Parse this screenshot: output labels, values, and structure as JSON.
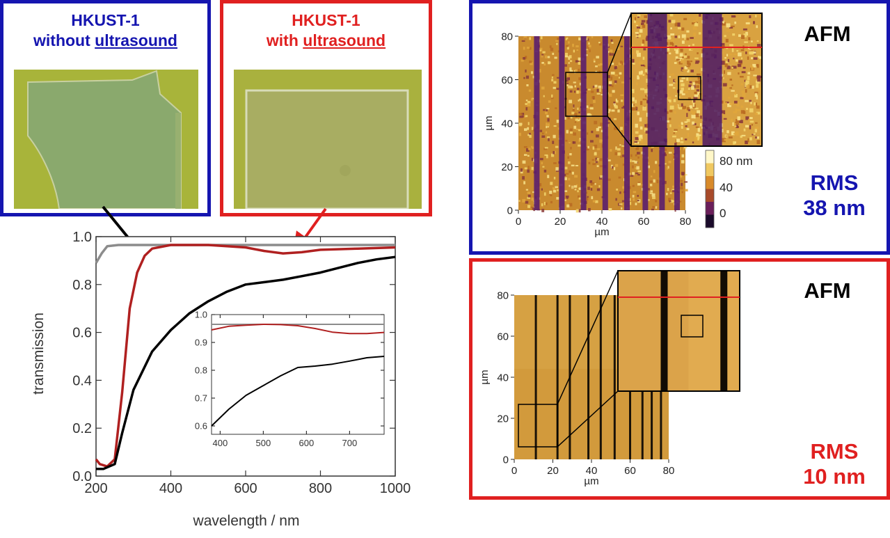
{
  "colors": {
    "blue": "#1515b0",
    "red": "#e02020",
    "black": "#000000",
    "gray": "#8c8c8c",
    "dark_red": "#b02020"
  },
  "sample_left": {
    "line1": "HKUST-1",
    "line2_prefix": "without ",
    "line2_underlined": "ultrasound"
  },
  "sample_right": {
    "line1": "HKUST-1",
    "line2_prefix": "with ",
    "line2_underlined": "ultrasound"
  },
  "afm_top": {
    "label": "AFM",
    "rms_label": "RMS",
    "rms_value": "38 nm",
    "x_ticks": [
      "0",
      "20",
      "40",
      "60",
      "80"
    ],
    "y_ticks": [
      "0",
      "20",
      "40",
      "60",
      "80"
    ],
    "xlabel": "µm",
    "ylabel": "µm",
    "colorbar_ticks": [
      "80",
      "40",
      "0"
    ],
    "colorbar_unit": "nm"
  },
  "afm_bottom": {
    "label": "AFM",
    "rms_label": "RMS",
    "rms_value": "10 nm",
    "x_ticks": [
      "0",
      "20",
      "40",
      "60",
      "80"
    ],
    "y_ticks": [
      "0",
      "20",
      "40",
      "60",
      "80"
    ],
    "xlabel": "µm",
    "ylabel": "µm"
  },
  "chart_data": [
    {
      "type": "line",
      "xlabel": "wavelength / nm",
      "ylabel": "transmission",
      "xlim": [
        200,
        1000
      ],
      "ylim": [
        0.0,
        1.0
      ],
      "x_ticks": [
        "200",
        "400",
        "600",
        "800",
        "1000"
      ],
      "y_ticks": [
        "0.0",
        "0.2",
        "0.4",
        "0.6",
        "0.8",
        "1.0"
      ],
      "series": [
        {
          "color": "#8c8c8c",
          "x": [
            200,
            215,
            230,
            260,
            300,
            400,
            500,
            600,
            700,
            800,
            900,
            1000
          ],
          "y": [
            0.89,
            0.93,
            0.96,
            0.965,
            0.965,
            0.965,
            0.965,
            0.965,
            0.965,
            0.965,
            0.965,
            0.965
          ]
        },
        {
          "color": "#b02020",
          "x": [
            200,
            210,
            230,
            250,
            270,
            290,
            310,
            330,
            350,
            400,
            450,
            500,
            550,
            600,
            650,
            700,
            750,
            800,
            900,
            1000
          ],
          "y": [
            0.07,
            0.05,
            0.04,
            0.07,
            0.35,
            0.7,
            0.85,
            0.92,
            0.95,
            0.965,
            0.965,
            0.965,
            0.96,
            0.955,
            0.94,
            0.93,
            0.935,
            0.945,
            0.95,
            0.955
          ]
        },
        {
          "color": "#000000",
          "x": [
            200,
            220,
            250,
            270,
            300,
            350,
            400,
            450,
            500,
            550,
            600,
            650,
            700,
            750,
            800,
            850,
            900,
            950,
            1000
          ],
          "y": [
            0.03,
            0.03,
            0.05,
            0.18,
            0.36,
            0.52,
            0.61,
            0.68,
            0.73,
            0.77,
            0.8,
            0.81,
            0.82,
            0.835,
            0.85,
            0.87,
            0.89,
            0.905,
            0.915
          ]
        }
      ]
    },
    {
      "type": "line",
      "xlim": [
        380,
        780
      ],
      "ylim": [
        0.57,
        1.0
      ],
      "x_ticks": [
        "400",
        "500",
        "600",
        "700"
      ],
      "y_ticks": [
        "0.6",
        "0.7",
        "0.8",
        "0.9",
        "1.0"
      ],
      "series": [
        {
          "color": "#8c8c8c",
          "x": [
            380,
            780
          ],
          "y": [
            0.965,
            0.965
          ]
        },
        {
          "color": "#b02020",
          "x": [
            380,
            420,
            460,
            500,
            540,
            580,
            620,
            660,
            700,
            740,
            780
          ],
          "y": [
            0.945,
            0.958,
            0.962,
            0.965,
            0.964,
            0.96,
            0.95,
            0.937,
            0.932,
            0.932,
            0.936
          ]
        },
        {
          "color": "#000000",
          "x": [
            380,
            420,
            460,
            500,
            540,
            580,
            620,
            660,
            700,
            740,
            780
          ],
          "y": [
            0.6,
            0.66,
            0.71,
            0.745,
            0.78,
            0.81,
            0.815,
            0.822,
            0.833,
            0.845,
            0.85
          ]
        }
      ]
    }
  ]
}
